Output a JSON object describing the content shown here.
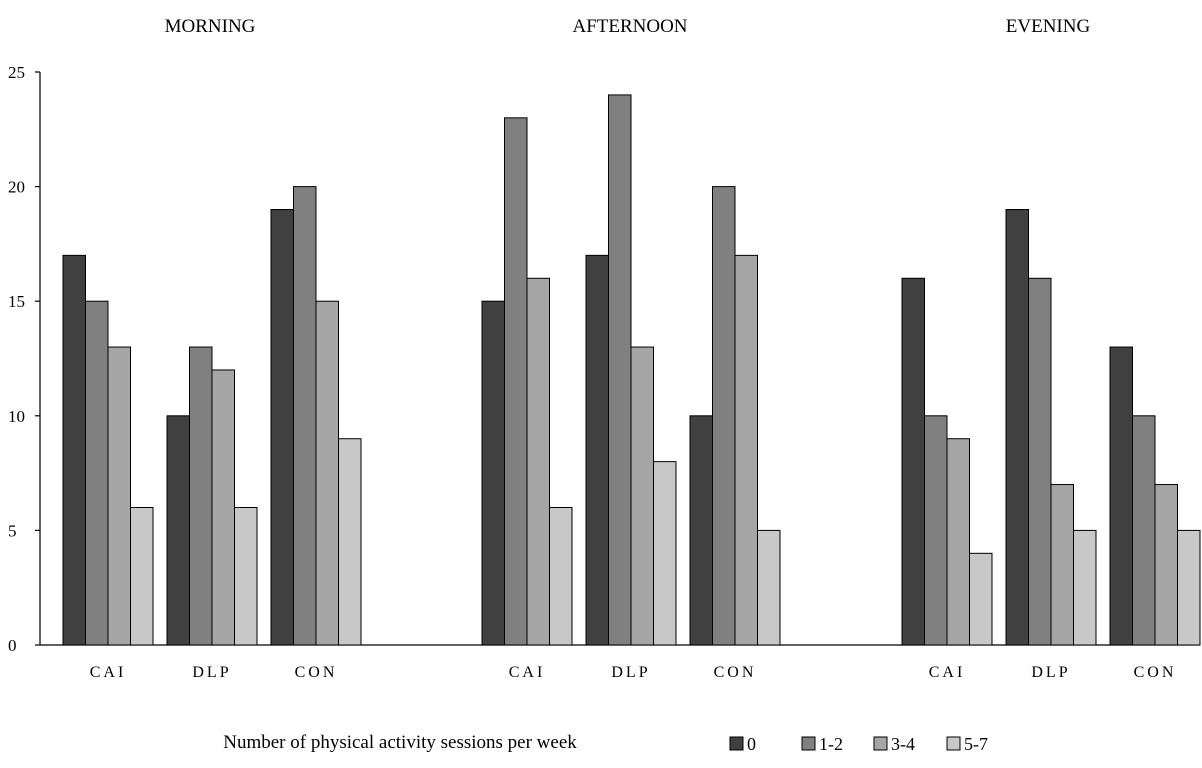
{
  "chart_data": {
    "type": "bar",
    "panels": [
      {
        "title": "MORNING",
        "categories": [
          "CAI",
          "DLP",
          "CON"
        ],
        "series": [
          {
            "name": "0",
            "values": [
              17,
              10,
              19
            ]
          },
          {
            "name": "1-2",
            "values": [
              15,
              13,
              20
            ]
          },
          {
            "name": "3-4",
            "values": [
              13,
              12,
              15
            ]
          },
          {
            "name": "5-7",
            "values": [
              6,
              6,
              9
            ]
          }
        ]
      },
      {
        "title": "AFTERNOON",
        "categories": [
          "CAI",
          "DLP",
          "CON"
        ],
        "series": [
          {
            "name": "0",
            "values": [
              15,
              17,
              10
            ]
          },
          {
            "name": "1-2",
            "values": [
              23,
              24,
              20
            ]
          },
          {
            "name": "3-4",
            "values": [
              16,
              13,
              17
            ]
          },
          {
            "name": "5-7",
            "values": [
              6,
              8,
              5
            ]
          }
        ]
      },
      {
        "title": "EVENING",
        "categories": [
          "CAI",
          "DLP",
          "CON"
        ],
        "series": [
          {
            "name": "0",
            "values": [
              16,
              19,
              13
            ]
          },
          {
            "name": "1-2",
            "values": [
              10,
              16,
              10
            ]
          },
          {
            "name": "3-4",
            "values": [
              9,
              7,
              7
            ]
          },
          {
            "name": "5-7",
            "values": [
              4,
              5,
              5
            ]
          }
        ]
      }
    ],
    "ylim": [
      0,
      25
    ],
    "yticks": [
      0,
      5,
      10,
      15,
      20,
      25
    ],
    "xlabel": "Number of physical activity sessions per week",
    "ylabel": "",
    "legend": {
      "position": "bottom-right",
      "entries": [
        "0",
        "1-2",
        "3-4",
        "5-7"
      ]
    },
    "grid": false
  },
  "colors": {
    "series": [
      "#404040",
      "#808080",
      "#a6a6a6",
      "#c8c8c8"
    ],
    "axis": "#000000"
  }
}
